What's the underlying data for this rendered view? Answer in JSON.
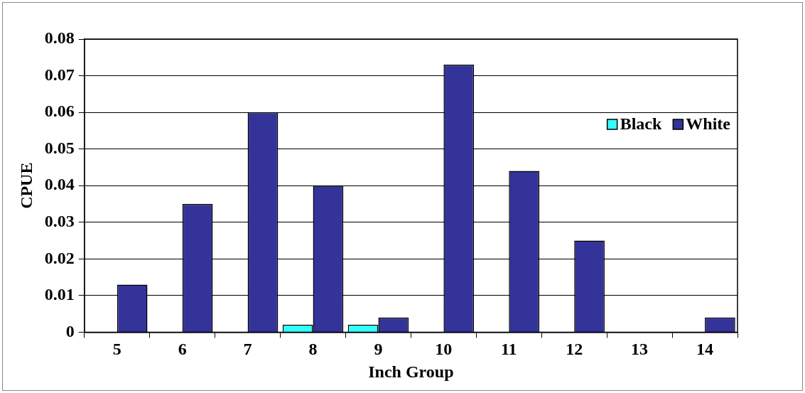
{
  "chart_data": {
    "type": "bar",
    "xlabel": "Inch Group",
    "ylabel": "CPUE",
    "categories": [
      "5",
      "6",
      "7",
      "8",
      "9",
      "10",
      "11",
      "12",
      "13",
      "14"
    ],
    "series": [
      {
        "name": "Black",
        "color": "#33ffff",
        "values": [
          0,
          0,
          0,
          0.002,
          0.002,
          0,
          0,
          0,
          0,
          0
        ]
      },
      {
        "name": "White",
        "color": "#333399",
        "values": [
          0.013,
          0.035,
          0.06,
          0.04,
          0.004,
          0.073,
          0.044,
          0.025,
          0,
          0.004
        ]
      }
    ],
    "ylim": [
      0,
      0.08
    ],
    "yticks": [
      0,
      0.01,
      0.02,
      0.03,
      0.04,
      0.05,
      0.06,
      0.07,
      0.08
    ],
    "grid": "y",
    "legend": "top right"
  }
}
